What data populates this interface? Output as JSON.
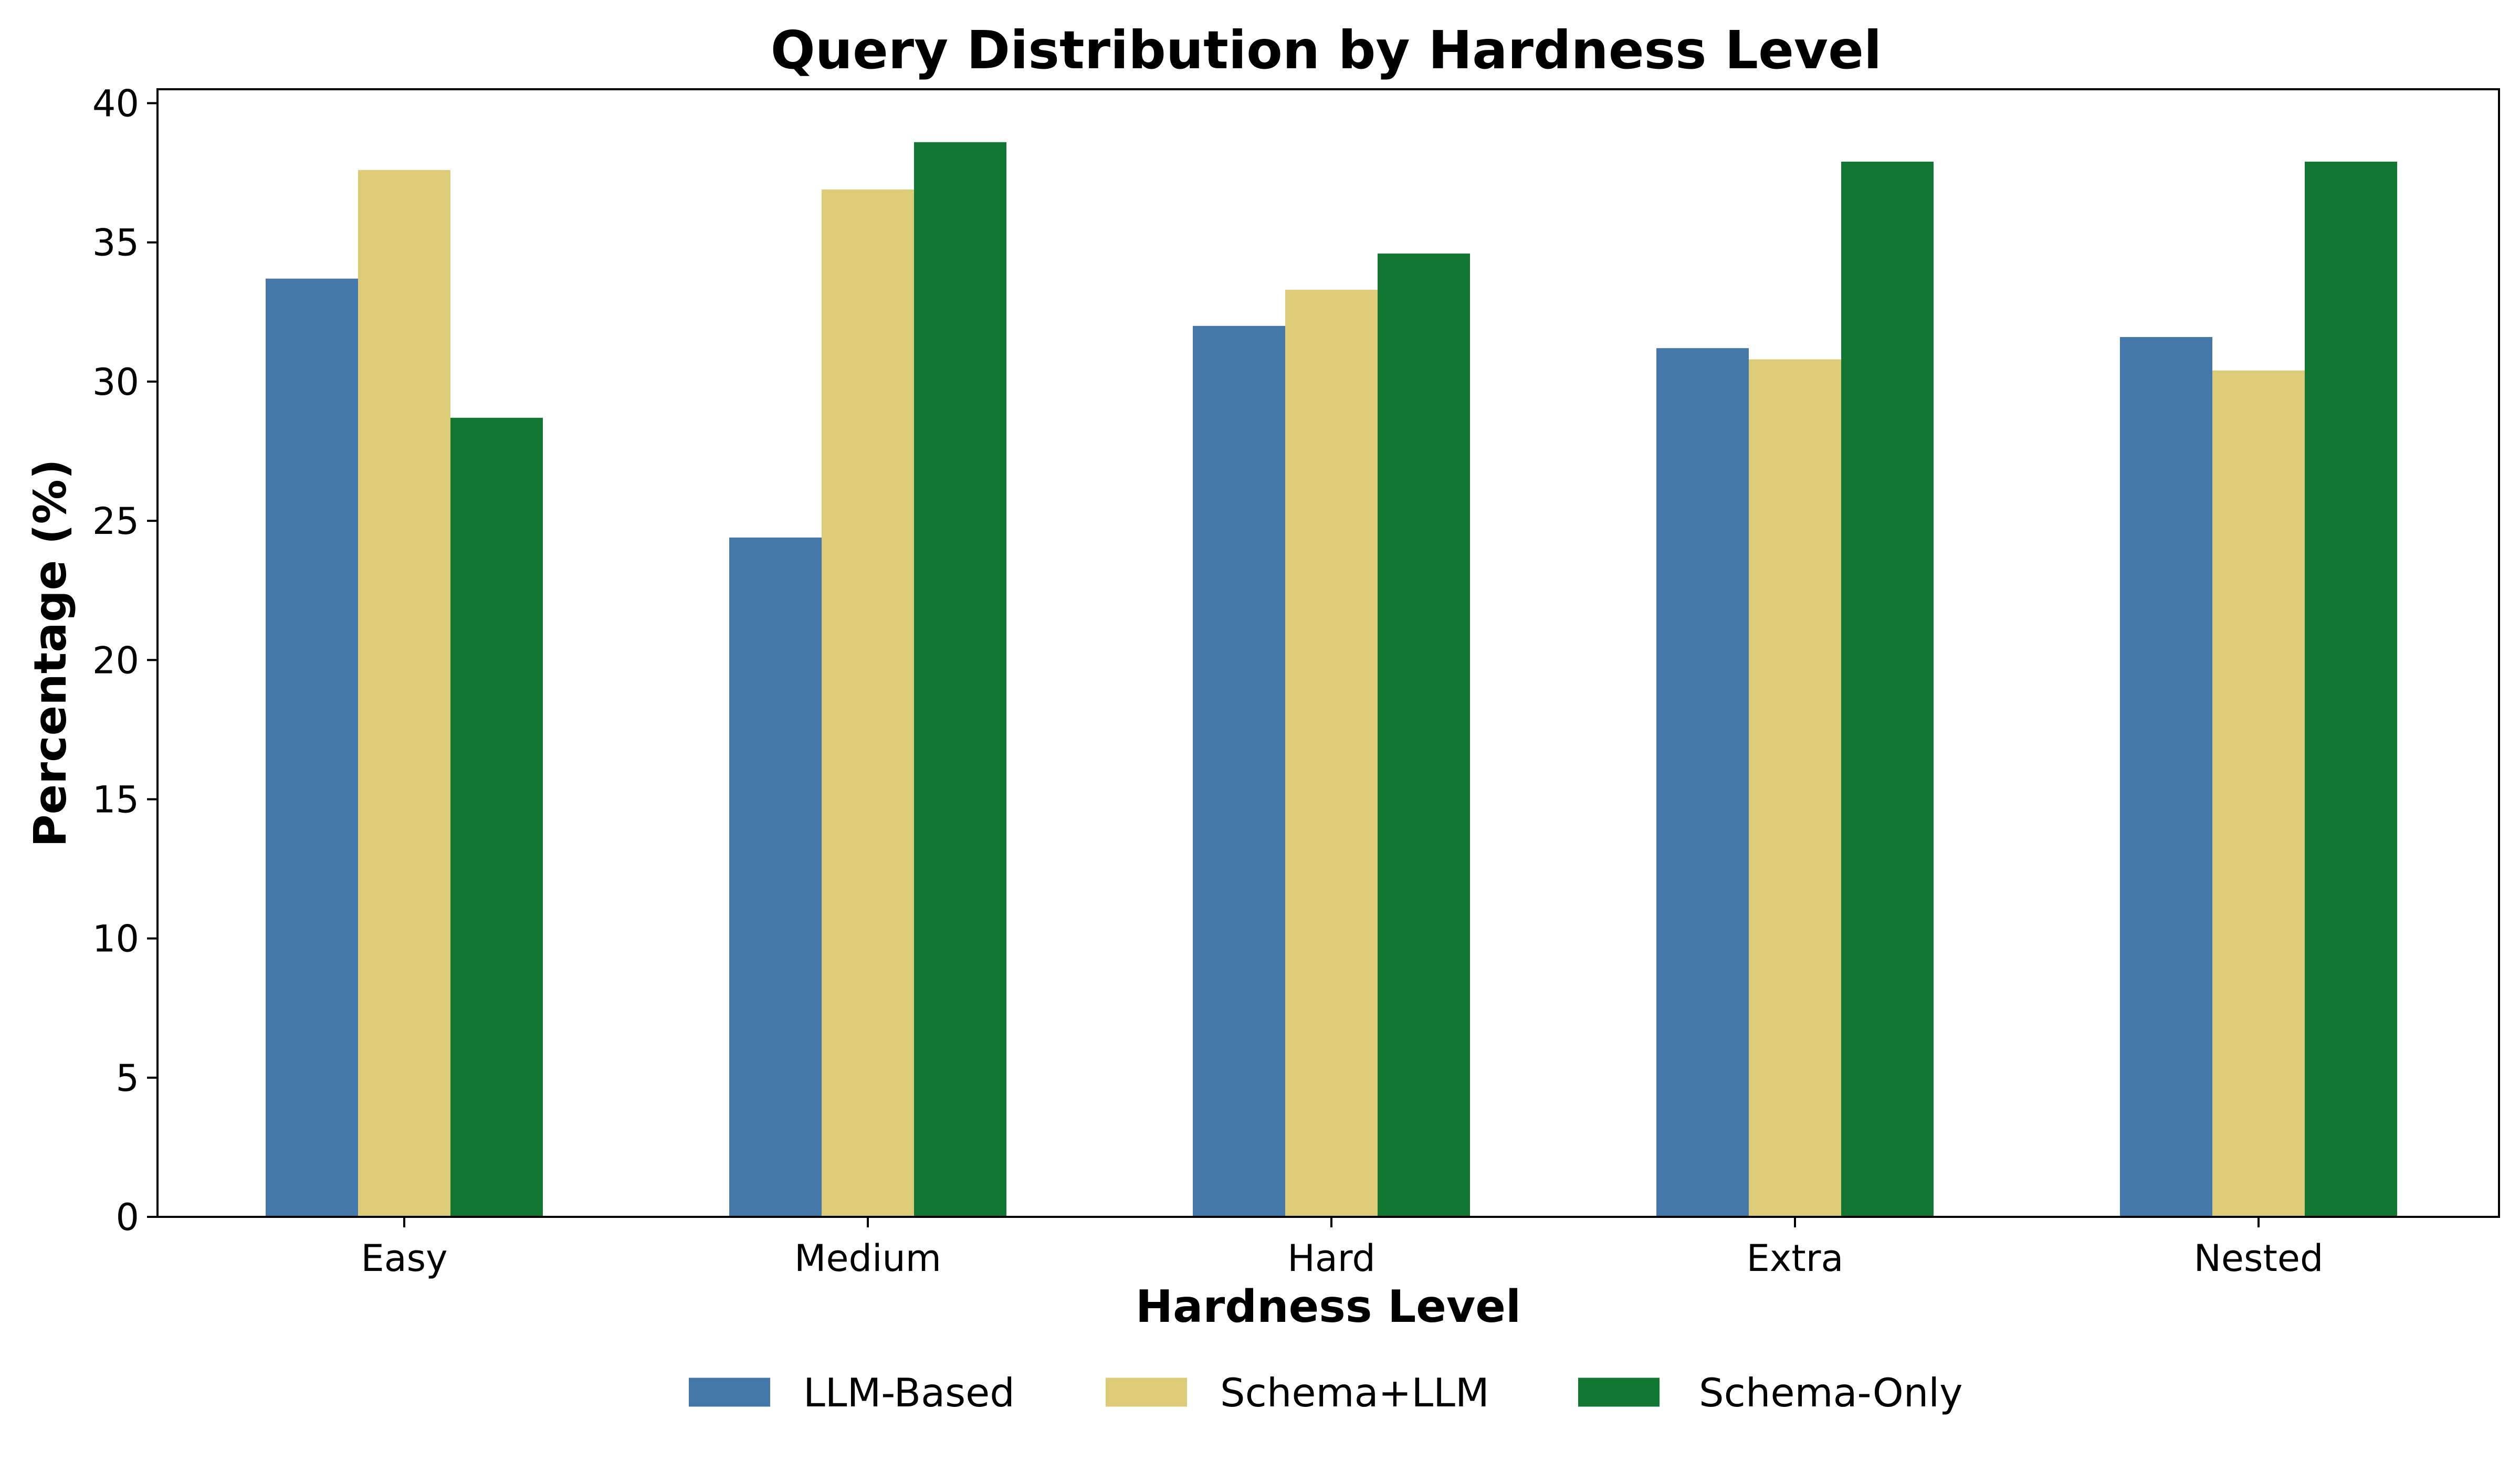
{
  "chart_data": {
    "type": "bar",
    "title": "Query Distribution by Hardness Level",
    "xlabel": "Hardness Level",
    "ylabel": "Percentage (%)",
    "categories": [
      "Easy",
      "Medium",
      "Hard",
      "Extra",
      "Nested"
    ],
    "ylim": [
      0,
      40.5
    ],
    "yticks": [
      "0",
      "5",
      "10",
      "15",
      "20",
      "25",
      "30",
      "35",
      "40"
    ],
    "grid": false,
    "legend_position": "bottom-center",
    "series": [
      {
        "name": "LLM-Based",
        "color": "#4477aa",
        "values": [
          33.7,
          24.4,
          32.0,
          31.2,
          31.6
        ]
      },
      {
        "name": "Schema+LLM",
        "color": "#ddcc77",
        "values": [
          37.6,
          36.9,
          33.3,
          30.8,
          30.4
        ]
      },
      {
        "name": "Schema-Only",
        "color": "#117733",
        "values": [
          28.7,
          38.6,
          34.6,
          37.9,
          37.9
        ]
      }
    ]
  }
}
